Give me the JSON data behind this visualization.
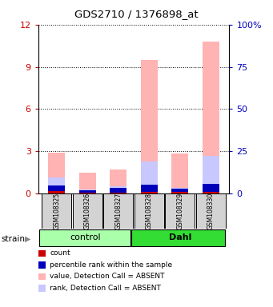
{
  "title": "GDS2710 / 1376898_at",
  "samples": [
    "GSM108325",
    "GSM108326",
    "GSM108327",
    "GSM108328",
    "GSM108329",
    "GSM108330"
  ],
  "ylim_left": [
    0,
    12
  ],
  "ylim_right": [
    0,
    100
  ],
  "yticks_left": [
    0,
    3,
    6,
    9,
    12
  ],
  "ytick_labels_left": [
    "0",
    "3",
    "6",
    "9",
    "12"
  ],
  "yticks_right": [
    0,
    25,
    50,
    75,
    100
  ],
  "ytick_labels_right": [
    "0",
    "25",
    "50",
    "75",
    "100%"
  ],
  "value_absent": [
    2.9,
    1.5,
    1.7,
    9.5,
    2.85,
    10.8
  ],
  "rank_absent": [
    1.15,
    0.28,
    0.48,
    2.25,
    0.38,
    2.65
  ],
  "count_val": [
    0.18,
    0.06,
    0.06,
    0.12,
    0.12,
    0.12
  ],
  "percentile_val": [
    0.38,
    0.14,
    0.32,
    0.52,
    0.22,
    0.58
  ],
  "color_value_absent": "#FFB3B3",
  "color_rank_absent": "#C8C8FF",
  "color_count": "#CC0000",
  "color_percentile": "#0000BB",
  "control_color": "#AAFFAA",
  "dahl_color": "#33DD33",
  "group_label_control": "control",
  "group_label_dahl": "Dahl",
  "strain_label": "strain",
  "legend_items": [
    {
      "label": "count",
      "color": "#CC0000"
    },
    {
      "label": "percentile rank within the sample",
      "color": "#0000BB"
    },
    {
      "label": "value, Detection Call = ABSENT",
      "color": "#FFB3B3"
    },
    {
      "label": "rank, Detection Call = ABSENT",
      "color": "#C8C8FF"
    }
  ],
  "left_ytick_color": "#CC0000",
  "right_ytick_color": "#0000BB",
  "bar_width": 0.55
}
